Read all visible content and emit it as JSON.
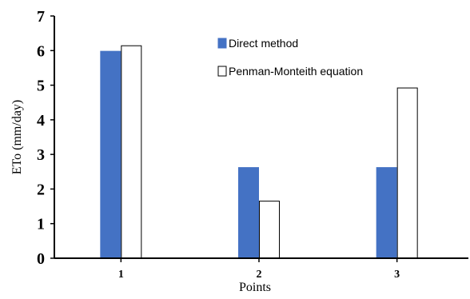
{
  "chart_data": {
    "type": "bar",
    "title": "",
    "xlabel": "Points",
    "ylabel": "ETo (mm/day)",
    "categories": [
      "1",
      "2",
      "3"
    ],
    "ylim": [
      0,
      7
    ],
    "yticks": [
      0,
      1,
      2,
      3,
      4,
      5,
      6,
      7
    ],
    "grid": false,
    "legend_position": "top-right",
    "series": [
      {
        "name": "Direct method",
        "values": [
          5.98,
          2.62,
          2.62
        ],
        "color": "#4472C4",
        "stroke": "#4472C4"
      },
      {
        "name": "Penman-Monteith equation",
        "values": [
          6.14,
          1.65,
          4.92
        ],
        "color": "#FFFFFF",
        "stroke": "#000000"
      }
    ]
  }
}
